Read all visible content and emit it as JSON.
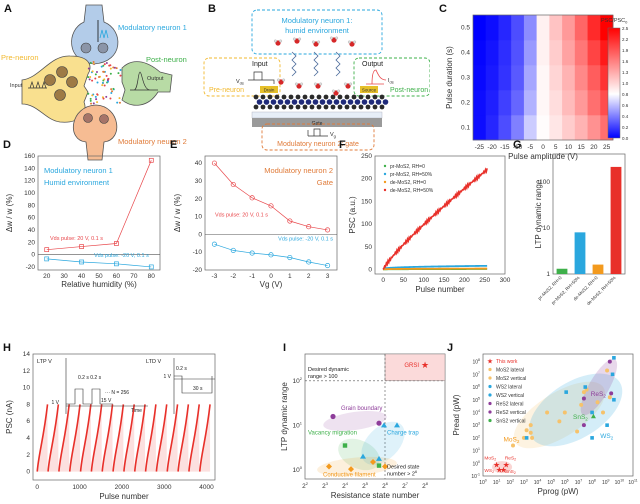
{
  "panels": {
    "A": {
      "label": "A",
      "modulatory1": "Modulatory neuron 1",
      "pre": "Pre-neuron",
      "post": "Post-neuron",
      "modulatory2": "Modulatory neuron 2",
      "input": "Input",
      "output": "Output",
      "colors": {
        "mod1": "#2aa7de",
        "pre": "#f2b92f",
        "post": "#3eb04a",
        "mod2": "#e07b39"
      }
    },
    "B": {
      "label": "B",
      "mod1_line1": "Modulatory neuron 1:",
      "mod1_line2": "humid environment",
      "input": "Input",
      "output": "Output",
      "vds": "V",
      "vds_sub": "ds",
      "ids": "I",
      "ids_sub": "ds",
      "drain": "Drain",
      "source": "Source",
      "pre": "Pre-neuron",
      "post": "Post-neuron",
      "gate": "Gate",
      "vg": "V",
      "vg_sub": "g",
      "mod2": "Modulatory neuron 2: gate"
    }
  },
  "chart_data": [
    {
      "id": "C",
      "type": "heatmap",
      "title": "",
      "xlabel": "Pulse amplitude (V)",
      "ylabel": "Pulse duration (s)",
      "x": [
        -25,
        -20,
        -15,
        -10,
        -5,
        0,
        5,
        10,
        15,
        20,
        25
      ],
      "x_ticks": [
        "-25",
        "-20",
        "-15",
        "-10",
        "-5",
        "0",
        "5",
        "10",
        "15",
        "20",
        "25"
      ],
      "y": [
        0.1,
        0.2,
        0.3,
        0.4,
        0.5
      ],
      "y_ticks": [
        "0.1",
        "0.2",
        "0.3",
        "0.4",
        "0.5"
      ],
      "colorbar_label": "PSC/PSC",
      "colorbar_sub": "0",
      "colorbar_ticks": [
        "0.0",
        "0.2",
        "0.4",
        "0.6",
        "0.8",
        "1.0",
        "1.3",
        "1.6",
        "1.9",
        "2.2",
        "2.5"
      ],
      "zlim": [
        0,
        2.5
      ],
      "values": [
        [
          0.05,
          0.15,
          0.3,
          0.5,
          0.8,
          1.02,
          1.15,
          1.3,
          1.45,
          1.65,
          1.85
        ],
        [
          0.05,
          0.12,
          0.25,
          0.4,
          0.7,
          1.05,
          1.2,
          1.4,
          1.6,
          1.85,
          2.05
        ],
        [
          0.03,
          0.1,
          0.2,
          0.35,
          0.65,
          1.05,
          1.25,
          1.45,
          1.7,
          1.95,
          2.2
        ],
        [
          0.02,
          0.08,
          0.18,
          0.32,
          0.6,
          1.08,
          1.3,
          1.55,
          1.8,
          2.1,
          2.35
        ],
        [
          0.0,
          0.05,
          0.15,
          0.3,
          0.55,
          1.08,
          1.35,
          1.6,
          1.9,
          2.25,
          2.5
        ]
      ]
    },
    {
      "id": "D",
      "type": "line",
      "xlabel": "Relative humidity (%)",
      "ylabel": "Δw / w (%)",
      "xlim": [
        15,
        85
      ],
      "ylim": [
        -25,
        160
      ],
      "x_ticks": [
        20,
        30,
        40,
        50,
        60,
        70,
        80
      ],
      "y_ticks": [
        -20,
        0,
        20,
        40,
        60,
        80,
        100,
        120,
        140,
        160
      ],
      "annotation_line1": "Modulatory neuron 1",
      "annotation_line2": "Humid environment",
      "series": [
        {
          "name": "Vds pulse: 20 V, 0.1 s",
          "color": "#e8474b",
          "x": [
            20,
            40,
            60,
            80
          ],
          "values": [
            8,
            13,
            18,
            153
          ]
        },
        {
          "name": "Vds pulse: -20 V, 0.1 s",
          "color": "#2aa7de",
          "x": [
            20,
            40,
            60,
            80
          ],
          "values": [
            -7,
            -12,
            -15,
            -20
          ]
        }
      ]
    },
    {
      "id": "E",
      "type": "line",
      "xlabel": "Vg (V)",
      "ylabel": "Δw / w (%)",
      "xlim": [
        -3.5,
        3.5
      ],
      "ylim": [
        -20,
        44
      ],
      "x_ticks": [
        -3,
        -2,
        -1,
        0,
        1,
        2,
        3
      ],
      "y_ticks": [
        -20,
        -10,
        0,
        10,
        20,
        30,
        40
      ],
      "annotation_line1": "Modulatory neuron 2",
      "annotation_line2": "Gate",
      "series": [
        {
          "name": "Vds pulse: 20 V, 0.1 s",
          "color": "#e8474b",
          "x": [
            -3,
            -2,
            -1,
            0,
            1,
            2,
            3
          ],
          "values": [
            40,
            28,
            20.5,
            16,
            7.5,
            4.3,
            2.5
          ]
        },
        {
          "name": "Vds pulse: -20 V, 0.1 s",
          "color": "#2aa7de",
          "x": [
            -3,
            -2,
            -1,
            0,
            1,
            2,
            3
          ],
          "values": [
            -5.5,
            -9,
            -10.5,
            -11.5,
            -13,
            -15.5,
            -17.5
          ]
        }
      ]
    },
    {
      "id": "F",
      "type": "scatter",
      "xlabel": "Pulse number",
      "ylabel": "PSC (a.u.)",
      "xlim": [
        -20,
        300
      ],
      "ylim": [
        -10,
        250
      ],
      "x_ticks": [
        0,
        50,
        100,
        150,
        200,
        250,
        300
      ],
      "y_ticks": [
        0,
        50,
        100,
        150,
        200,
        250
      ],
      "legend": "top-left",
      "series": [
        {
          "name": "pr-MoS2, RH=0",
          "color": "#3eb04a",
          "end_value": 1,
          "start_value": 0
        },
        {
          "name": "pr-MoS2, RH=50%",
          "color": "#2aa7de",
          "end_value": 8,
          "start_value": 0
        },
        {
          "name": "de-MoS2, RH=0",
          "color": "#f39a1e",
          "end_value": 2,
          "start_value": 0
        },
        {
          "name": "de-MoS2, RH=50%",
          "color": "#e8302a",
          "end_value": 220,
          "start_value": 0
        }
      ]
    },
    {
      "id": "G",
      "type": "bar",
      "ylabel": "LTP dynamic range",
      "yscale": "log",
      "ylim": [
        1,
        400
      ],
      "y_ticks": [
        "1",
        "10",
        "100"
      ],
      "categories": [
        "pr-MoS2, RH=0",
        "pr-MoS2, RH=50%",
        "de-MoS2, RH=0",
        "de-MoS2, RH=50%"
      ],
      "values": [
        1.3,
        8,
        1.6,
        210
      ],
      "colors": [
        "#3eb04a",
        "#2aa7de",
        "#f39a1e",
        "#e8302a"
      ]
    },
    {
      "id": "H",
      "type": "scatter",
      "xlabel": "Pulse number",
      "ylabel": "PSC (nA)",
      "xlim": [
        -100,
        4200
      ],
      "ylim": [
        -1,
        14
      ],
      "x_ticks": [
        0,
        1000,
        2000,
        3000,
        4000
      ],
      "y_ticks": [
        0,
        2,
        4,
        6,
        8,
        10,
        12,
        14
      ],
      "cycles": 16,
      "pulses_per_half": 256,
      "max_value": 8,
      "inset": {
        "ltp": "LTP V",
        "ltd": "LTD V",
        "sub": "ds",
        "t1": "0.2 s",
        "t2": "0.2 s",
        "n": "N = 256",
        "v15": "15 V",
        "vneg15": "-15 V",
        "v1": "1 V",
        "v1b": "1 V",
        "time": "Time",
        "time2": "Time",
        "t3": "0.2 s",
        "t30": "30 s"
      }
    },
    {
      "id": "I",
      "type": "scatter",
      "xlabel": "Resistance state number",
      "ylabel": "LTP dynamic range",
      "xscale": "log2",
      "yscale": "log",
      "xlim": [
        2,
        9
      ],
      "ylim": [
        -0.2,
        2.6
      ],
      "x_ticks": [
        "2",
        "3",
        "4",
        "5",
        "6",
        "7",
        "8"
      ],
      "y_ticks": [
        "0",
        "1",
        "2"
      ],
      "annotations": {
        "desired_range_1": "Desired dynamic",
        "desired_range_2": "range > 100",
        "desired_state_1": "Desired state",
        "desired_state_2": "number > 2",
        "desired_state_exp": "6",
        "grsi": "GRSI"
      },
      "groups": [
        {
          "name": "Grain boundary",
          "color": "#8e3d9a",
          "shape": "hexagon",
          "points": [
            [
              3.4,
              1.2
            ],
            [
              5.7,
              1.05
            ]
          ]
        },
        {
          "name": "Vacancy migration",
          "color": "#3eb04a",
          "shape": "square",
          "points": [
            [
              4.0,
              0.55
            ],
            [
              5.7,
              0.1
            ]
          ]
        },
        {
          "name": "Charge trap",
          "color": "#2aa7de",
          "shape": "triangle",
          "points": [
            [
              4.9,
              0.3
            ],
            [
              5.7,
              0.25
            ],
            [
              5.95,
              1.0
            ],
            [
              6.6,
              1.0
            ]
          ]
        },
        {
          "name": "Conductive filament",
          "color": "#f39a1e",
          "shape": "diamond",
          "points": [
            [
              3.2,
              0.08
            ],
            [
              4.3,
              0.02
            ],
            [
              5.4,
              0.18
            ],
            [
              6.0,
              0.08
            ]
          ]
        },
        {
          "name": "GRSI",
          "color": "#e8302a",
          "shape": "star",
          "points": [
            [
              8.0,
              2.35
            ]
          ]
        }
      ]
    },
    {
      "id": "J",
      "type": "scatter",
      "xlabel": "Pprog (pW)",
      "ylabel": "Pread (pW)",
      "xscale": "log",
      "yscale": "log",
      "xlim": [
        0,
        11
      ],
      "ylim": [
        -1,
        8.6
      ],
      "x_ticks": [
        "0",
        "1",
        "2",
        "3",
        "4",
        "5",
        "6",
        "7",
        "8",
        "9",
        "10",
        "11"
      ],
      "y_ticks": [
        "-1",
        "0",
        "1",
        "2",
        "3",
        "4",
        "5",
        "6",
        "7",
        "8"
      ],
      "legend": "top-left",
      "region_labels": {
        "mos2": "MoS",
        "ws2": "WS",
        "res2": "ReS",
        "sns2": "SnS",
        "sub": "2"
      },
      "this_work_labels": {
        "mos2": "MoS",
        "res2": "ReS",
        "ws2": "WS",
        "sns2": "SnS",
        "sub": "2"
      },
      "series": [
        {
          "name": "This work",
          "color": "#e8302a",
          "shape": "star",
          "points": [
            [
              1.0,
              -0.1
            ],
            [
              1.7,
              -0.1
            ],
            [
              1.2,
              -0.5
            ],
            [
              1.5,
              -0.5
            ]
          ]
        },
        {
          "name": "MoS2 lateral",
          "color": "#f6c26b",
          "shape": "circle",
          "points": [
            [
              2.2,
              1.4
            ],
            [
              3.2,
              2.6
            ],
            [
              3.5,
              2.4
            ],
            [
              4.7,
              4.0
            ],
            [
              5.6,
              3.3
            ],
            [
              6.0,
              4.0
            ],
            [
              6.9,
              2.5
            ],
            [
              7.4,
              5.6
            ]
          ]
        },
        {
          "name": "MoS2 vertical",
          "color": "#f6c26b",
          "shape": "circle",
          "points": [
            [
              3.0,
              2.0
            ],
            [
              3.5,
              3.0
            ],
            [
              3.6,
              2.0
            ],
            [
              7.2,
              4.6
            ],
            [
              7.6,
              5.8
            ],
            [
              8.4,
              4.8
            ],
            [
              8.8,
              4.0
            ],
            [
              9.1,
              7.3
            ],
            [
              9.3,
              5.2
            ]
          ]
        },
        {
          "name": "WS2 lateral",
          "color": "#2aa7de",
          "shape": "square",
          "points": [
            [
              3.2,
              2.0
            ],
            [
              7.5,
              6.0
            ],
            [
              8.0,
              4.0
            ],
            [
              9.6,
              8.3
            ]
          ]
        },
        {
          "name": "WS2 vertical",
          "color": "#2aa7de",
          "shape": "square",
          "points": [
            [
              6.1,
              5.6
            ],
            [
              8.0,
              2.0
            ],
            [
              9.1,
              3.0
            ],
            [
              9.5,
              7.0
            ],
            [
              9.6,
              5.0
            ]
          ]
        },
        {
          "name": "ReS2 lateral",
          "color": "#8e3d9a",
          "shape": "circle",
          "points": [
            [
              7.4,
              5.1
            ],
            [
              7.4,
              3.0
            ]
          ]
        },
        {
          "name": "ReS2 vertical",
          "color": "#8e3d9a",
          "shape": "circle",
          "points": [
            [
              9.3,
              8.0
            ],
            [
              9.4,
              5.5
            ]
          ]
        },
        {
          "name": "SnS2 vertical",
          "color": "#3eb04a",
          "shape": "triangle",
          "points": [
            [
              8.1,
              3.7
            ]
          ]
        }
      ]
    }
  ]
}
